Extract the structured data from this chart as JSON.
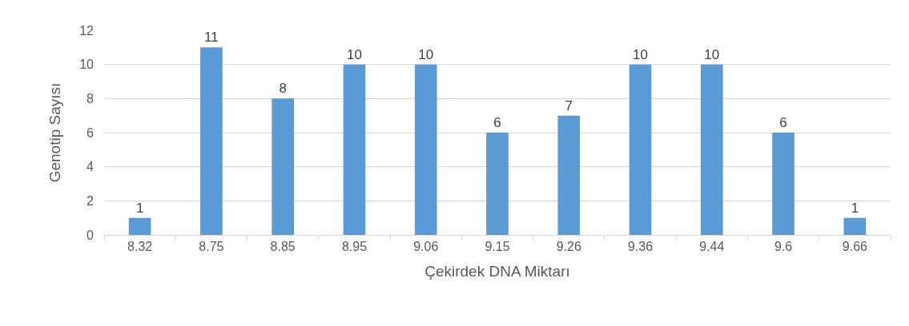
{
  "chart_data": {
    "type": "bar",
    "xlabel": "Çekirdek DNA Miktarı",
    "ylabel": "Genotip Sayısı",
    "categories": [
      "8.32",
      "8.75",
      "8.85",
      "8.95",
      "9.06",
      "9.15",
      "9.26",
      "9.36",
      "9.44",
      "9.6",
      "9.66"
    ],
    "values": [
      1,
      11,
      8,
      10,
      10,
      6,
      7,
      10,
      10,
      6,
      1
    ],
    "color": "#5b9bd5",
    "ylim": [
      0,
      12
    ],
    "yticks": [
      0,
      2,
      4,
      6,
      8,
      10,
      12
    ],
    "grid": "y",
    "data_labels": true
  }
}
